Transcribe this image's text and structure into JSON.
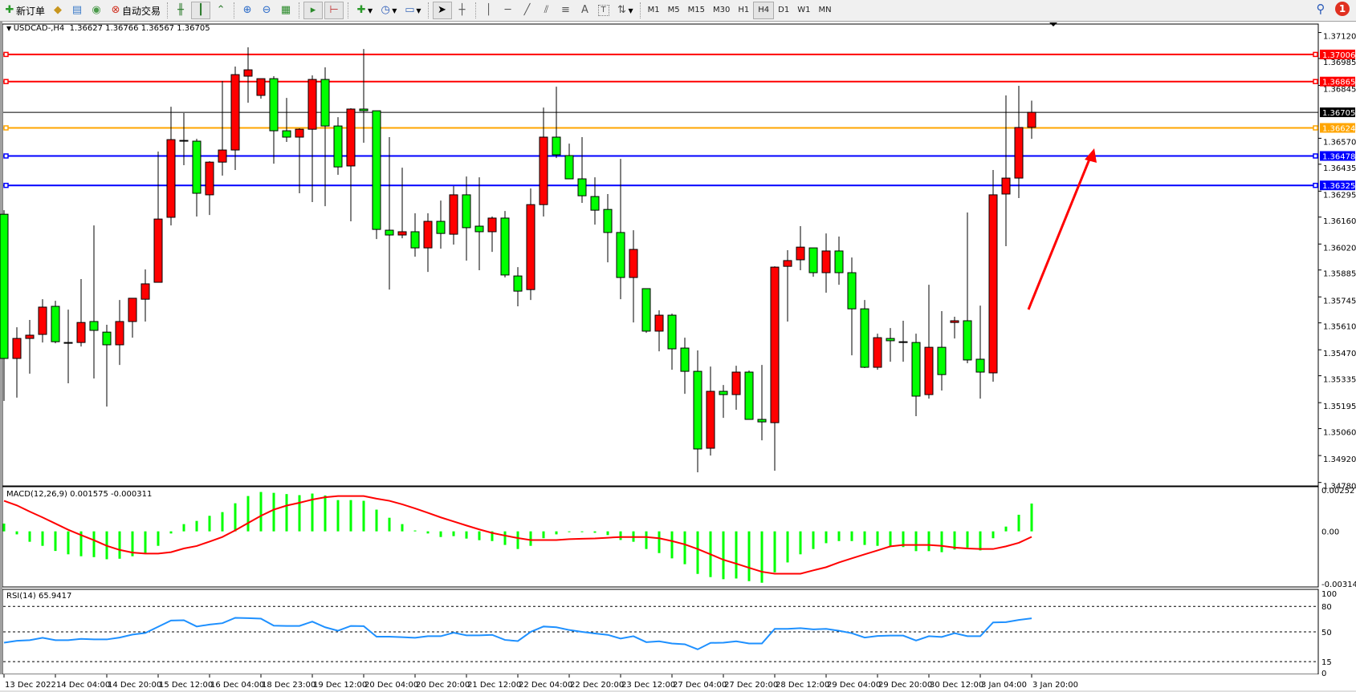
{
  "toolbar": {
    "new_order_label": "新订单",
    "auto_trade_label": "自动交易",
    "timeframes": [
      "M1",
      "M5",
      "M15",
      "M30",
      "H1",
      "H4",
      "D1",
      "W1",
      "MN"
    ],
    "active_timeframe": "H4",
    "notification_count": "1"
  },
  "chart": {
    "symbol": "USDCAD-,H4",
    "header_values": "1.36627 1.36766 1.36567 1.36705"
  },
  "chart_data": {
    "type": "candlestick",
    "up_color": "#ff0000",
    "down_color": "#00ff00",
    "ohlc": [
      [
        1.36175,
        1.36196,
        1.35204,
        1.35425
      ],
      [
        1.35425,
        1.35587,
        1.35221,
        1.35529
      ],
      [
        1.35529,
        1.35625,
        1.35346,
        1.35546
      ],
      [
        1.3555,
        1.35733,
        1.35508,
        1.35692
      ],
      [
        1.35696,
        1.35725,
        1.35504,
        1.35512
      ],
      [
        1.35508,
        1.35679,
        1.35296,
        1.35508
      ],
      [
        1.35508,
        1.35838,
        1.35487,
        1.35612
      ],
      [
        1.35617,
        1.36117,
        1.35321,
        1.35571
      ],
      [
        1.35562,
        1.356,
        1.35175,
        1.35496
      ],
      [
        1.35496,
        1.35729,
        1.35391,
        1.35617
      ],
      [
        1.35617,
        1.35738,
        1.35533,
        1.35738
      ],
      [
        1.35733,
        1.35888,
        1.35617,
        1.35813
      ],
      [
        1.35821,
        1.36501,
        1.35821,
        1.3615
      ],
      [
        1.36159,
        1.36734,
        1.36117,
        1.36563
      ],
      [
        1.36559,
        1.36701,
        1.3643,
        1.36559
      ],
      [
        1.36555,
        1.36567,
        1.36163,
        1.36284
      ],
      [
        1.36276,
        1.36451,
        1.36171,
        1.36446
      ],
      [
        1.36446,
        1.36868,
        1.36376,
        1.36509
      ],
      [
        1.36509,
        1.36943,
        1.36405,
        1.36901
      ],
      [
        1.36893,
        1.37043,
        1.36755,
        1.36926
      ],
      [
        1.36793,
        1.3688,
        1.36776,
        1.3688
      ],
      [
        1.3688,
        1.36893,
        1.36438,
        1.36609
      ],
      [
        1.36609,
        1.3678,
        1.36551,
        1.36576
      ],
      [
        1.36576,
        1.36622,
        1.36284,
        1.36617
      ],
      [
        1.36617,
        1.36897,
        1.36238,
        1.36876
      ],
      [
        1.36876,
        1.36939,
        1.36217,
        1.36634
      ],
      [
        1.36634,
        1.3668,
        1.3638,
        1.36421
      ],
      [
        1.36426,
        1.36726,
        1.36138,
        1.36722
      ],
      [
        1.36722,
        1.37034,
        1.36547,
        1.36713
      ],
      [
        1.36713,
        1.36713,
        1.36046,
        1.36096
      ],
      [
        1.36092,
        1.36576,
        1.35783,
        1.36067
      ],
      [
        1.36067,
        1.36417,
        1.3605,
        1.36084
      ],
      [
        1.36084,
        1.3618,
        1.35954,
        1.36
      ],
      [
        1.36,
        1.3618,
        1.35875,
        1.36138
      ],
      [
        1.36138,
        1.36246,
        1.35996,
        1.36075
      ],
      [
        1.36071,
        1.36321,
        1.36017,
        1.36276
      ],
      [
        1.36276,
        1.36371,
        1.35934,
        1.36105
      ],
      [
        1.36113,
        1.36367,
        1.35884,
        1.36084
      ],
      [
        1.36084,
        1.36163,
        1.35979,
        1.36155
      ],
      [
        1.36155,
        1.36192,
        1.35846,
        1.35859
      ],
      [
        1.35854,
        1.359,
        1.35696,
        1.35775
      ],
      [
        1.35783,
        1.36309,
        1.35729,
        1.36225
      ],
      [
        1.36225,
        1.3673,
        1.36163,
        1.36576
      ],
      [
        1.36576,
        1.36838,
        1.36467,
        1.36484
      ],
      [
        1.3648,
        1.36542,
        1.36359,
        1.36359
      ],
      [
        1.36359,
        1.36576,
        1.36234,
        1.36271
      ],
      [
        1.36267,
        1.36367,
        1.36121,
        1.36196
      ],
      [
        1.362,
        1.3628,
        1.35925,
        1.3608
      ],
      [
        1.3608,
        1.36463,
        1.35733,
        1.35846
      ],
      [
        1.35846,
        1.36092,
        1.35612,
        1.35992
      ],
      [
        1.35788,
        1.35788,
        1.35558,
        1.35567
      ],
      [
        1.35567,
        1.35675,
        1.35462,
        1.3565
      ],
      [
        1.3565,
        1.35658,
        1.35366,
        1.35475
      ],
      [
        1.35479,
        1.35533,
        1.35241,
        1.35358
      ],
      [
        1.35358,
        1.35467,
        1.34833,
        1.34954
      ],
      [
        1.34958,
        1.35383,
        1.3492,
        1.35254
      ],
      [
        1.35254,
        1.35287,
        1.35116,
        1.35237
      ],
      [
        1.35237,
        1.35387,
        1.35158,
        1.35354
      ],
      [
        1.35354,
        1.35362,
        1.35108,
        1.35108
      ],
      [
        1.35108,
        1.35391,
        1.34999,
        1.35095
      ],
      [
        1.35091,
        1.35904,
        1.34841,
        1.359
      ],
      [
        1.35904,
        1.35988,
        1.35617,
        1.35934
      ],
      [
        1.35938,
        1.36113,
        1.35884,
        1.36004
      ],
      [
        1.36,
        1.36,
        1.3585,
        1.35871
      ],
      [
        1.35871,
        1.36075,
        1.35767,
        1.35984
      ],
      [
        1.35984,
        1.36059,
        1.35808,
        1.35871
      ],
      [
        1.35871,
        1.3595,
        1.35441,
        1.35683
      ],
      [
        1.35683,
        1.35729,
        1.35375,
        1.35379
      ],
      [
        1.35379,
        1.35554,
        1.35366,
        1.35533
      ],
      [
        1.35529,
        1.35583,
        1.35408,
        1.35517
      ],
      [
        1.35512,
        1.35621,
        1.35408,
        1.35512
      ],
      [
        1.35508,
        1.35554,
        1.35125,
        1.35229
      ],
      [
        1.35237,
        1.35808,
        1.35216,
        1.35483
      ],
      [
        1.35483,
        1.35671,
        1.35258,
        1.35341
      ],
      [
        1.35612,
        1.35642,
        1.35529,
        1.35621
      ],
      [
        1.35621,
        1.36184,
        1.354,
        1.35417
      ],
      [
        1.35421,
        1.357,
        1.35216,
        1.35354
      ],
      [
        1.3535,
        1.36405,
        1.35304,
        1.36276
      ],
      [
        1.3628,
        1.36793,
        1.36009,
        1.36363
      ],
      [
        1.36363,
        1.36843,
        1.36259,
        1.36626
      ],
      [
        1.36627,
        1.36766,
        1.36567,
        1.36705
      ]
    ],
    "y_range": [
      1.34762,
      1.37164
    ],
    "price_ticks": [
      "1.37120",
      "1.36985",
      "1.36845",
      "1.36570",
      "1.36435",
      "1.36295",
      "1.36160",
      "1.36020",
      "1.35885",
      "1.35745",
      "1.35610",
      "1.35470",
      "1.35335",
      "1.35195",
      "1.35060",
      "1.34920",
      "1.34780"
    ],
    "horizontal_lines": [
      {
        "price": "1.37006",
        "color": "#ff0000"
      },
      {
        "price": "1.36865",
        "color": "#ff0000"
      },
      {
        "price": "1.36624",
        "color": "#ffa500"
      },
      {
        "price": "1.36478",
        "color": "#0000ff"
      },
      {
        "price": "1.36325",
        "color": "#0000ff"
      }
    ],
    "bid_line": {
      "price": "1.36705",
      "color": "#000000"
    },
    "x_labels": [
      {
        "bar": 0,
        "text": "13 Dec 2022"
      },
      {
        "bar": 4,
        "text": "14 Dec 04:00"
      },
      {
        "bar": 8,
        "text": "14 Dec 20:00"
      },
      {
        "bar": 12,
        "text": "15 Dec 12:00"
      },
      {
        "bar": 16,
        "text": "16 Dec 04:00"
      },
      {
        "bar": 20,
        "text": "18 Dec 23:00"
      },
      {
        "bar": 24,
        "text": "19 Dec 12:00"
      },
      {
        "bar": 28,
        "text": "20 Dec 04:00"
      },
      {
        "bar": 32,
        "text": "20 Dec 20:00"
      },
      {
        "bar": 36,
        "text": "21 Dec 12:00"
      },
      {
        "bar": 40,
        "text": "22 Dec 04:00"
      },
      {
        "bar": 44,
        "text": "22 Dec 20:00"
      },
      {
        "bar": 48,
        "text": "23 Dec 12:00"
      },
      {
        "bar": 52,
        "text": "27 Dec 04:00"
      },
      {
        "bar": 56,
        "text": "27 Dec 20:00"
      },
      {
        "bar": 60,
        "text": "28 Dec 12:00"
      },
      {
        "bar": 64,
        "text": "29 Dec 04:00"
      },
      {
        "bar": 68,
        "text": "29 Dec 20:00"
      },
      {
        "bar": 72,
        "text": "30 Dec 12:00"
      },
      {
        "bar": 76,
        "text": "3 Jan 04:00"
      },
      {
        "bar": 80,
        "text": "3 Jan 20:00"
      }
    ],
    "macd": {
      "label": "MACD(12,26,9) 0.001575 -0.000311",
      "histogram_color": "#00ff00",
      "signal_color": "#ff0000",
      "y_range": [
        -0.003149,
        0.002527
      ],
      "axis_labels": [
        "0.002527",
        "0.00",
        "-0.003149"
      ],
      "histogram": [
        0.00044,
        -0.00017,
        -0.00059,
        -0.00082,
        -0.00111,
        -0.0013,
        -0.00141,
        -0.00146,
        -0.00158,
        -0.00155,
        -0.00141,
        -0.00124,
        -0.00082,
        -0.00012,
        0.00041,
        0.00059,
        0.00088,
        0.00109,
        0.00159,
        0.002,
        0.00223,
        0.00218,
        0.00211,
        0.00205,
        0.00214,
        0.00203,
        0.00177,
        0.00177,
        0.00173,
        0.00123,
        0.00077,
        0.00041,
        5e-05,
        -0.00012,
        -0.00032,
        -0.00027,
        -0.00041,
        -0.0005,
        -0.00055,
        -0.00077,
        -0.001,
        -0.00082,
        -0.00039,
        -0.00017,
        -2e-05,
        -2e-05,
        -8e-05,
        -0.00021,
        -0.00049,
        -0.00059,
        -0.001,
        -0.00123,
        -0.00153,
        -0.00186,
        -0.00241,
        -0.00259,
        -0.00271,
        -0.00267,
        -0.00282,
        -0.00291,
        -0.00232,
        -0.00176,
        -0.0013,
        -0.001,
        -0.00067,
        -0.00055,
        -0.00055,
        -0.00077,
        -0.00082,
        -0.00085,
        -0.00089,
        -0.00112,
        -0.00112,
        -0.00118,
        -0.00103,
        -0.00092,
        -0.00108,
        -0.00039,
        0.00027,
        0.00094,
        0.001575
      ],
      "signal": [
        0.00173,
        0.00147,
        0.00112,
        0.00079,
        0.00044,
        9e-05,
        -0.00021,
        -0.0005,
        -0.00082,
        -0.00105,
        -0.0012,
        -0.00126,
        -0.00126,
        -0.00118,
        -0.00097,
        -0.00083,
        -0.00058,
        -0.00032,
        6e-05,
        0.00047,
        0.00088,
        0.00123,
        0.00146,
        0.00162,
        0.0018,
        0.00193,
        0.002,
        0.002,
        0.002,
        0.00185,
        0.00173,
        0.00153,
        0.0013,
        0.00105,
        0.00079,
        0.00056,
        0.00033,
        0.00011,
        -9e-05,
        -0.00024,
        -0.00038,
        -0.00049,
        -0.00049,
        -0.00049,
        -0.00044,
        -0.00042,
        -0.0004,
        -0.00036,
        -0.00032,
        -0.00032,
        -0.00032,
        -0.00039,
        -0.00055,
        -0.00074,
        -0.001,
        -0.0013,
        -0.00161,
        -0.00183,
        -0.00206,
        -0.00229,
        -0.0024,
        -0.0024,
        -0.0024,
        -0.00221,
        -0.00203,
        -0.00176,
        -0.00153,
        -0.0013,
        -0.00108,
        -0.00085,
        -0.00077,
        -0.00077,
        -0.00077,
        -0.00082,
        -0.00092,
        -0.00097,
        -0.001,
        -0.001,
        -0.00085,
        -0.00065,
        -0.000311
      ]
    },
    "rsi": {
      "label": "RSI(14) 65.9417",
      "color": "#1e90ff",
      "y_range": [
        0,
        100
      ],
      "levels": [
        80,
        50,
        15
      ],
      "axis_labels": [
        "100",
        "80",
        "50",
        "15",
        "0"
      ],
      "values": [
        37.3,
        39.5,
        40.2,
        43.0,
        40.2,
        40.2,
        41.7,
        41.1,
        41.1,
        43.3,
        46.8,
        48.7,
        56.0,
        63.3,
        63.7,
        56.3,
        58.6,
        60.2,
        66.5,
        66.2,
        65.6,
        57.3,
        57.0,
        57.0,
        62.1,
        55.4,
        51.3,
        57.0,
        56.7,
        44.3,
        44.3,
        43.7,
        43.0,
        44.9,
        44.9,
        49.0,
        45.9,
        45.9,
        46.5,
        40.5,
        39.2,
        50.0,
        56.3,
        55.4,
        52.2,
        50.0,
        48.1,
        46.5,
        42.1,
        44.9,
        37.9,
        38.9,
        36.3,
        35.4,
        29.4,
        37.0,
        37.3,
        38.9,
        36.3,
        36.3,
        53.5,
        53.5,
        54.4,
        52.9,
        53.5,
        51.3,
        48.4,
        43.3,
        45.2,
        45.6,
        45.6,
        39.8,
        44.9,
        44.0,
        48.4,
        44.9,
        44.9,
        61.1,
        61.4,
        64.0,
        65.9417
      ]
    }
  }
}
